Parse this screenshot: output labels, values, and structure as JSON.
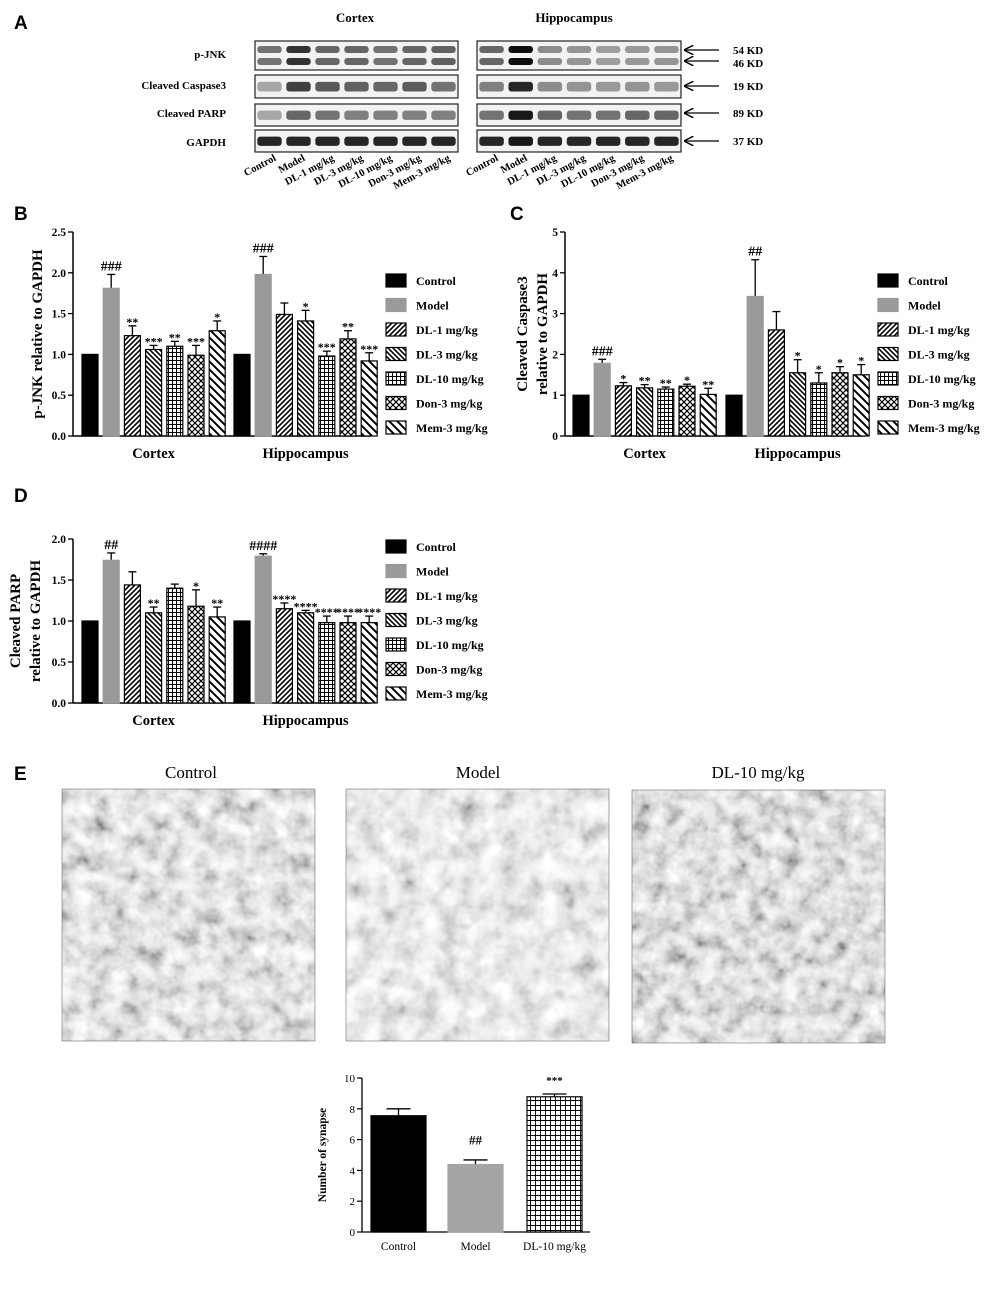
{
  "panel_letters": [
    "A",
    "B",
    "C",
    "D",
    "E"
  ],
  "blot": {
    "regions": [
      "Cortex",
      "Hippocampus"
    ],
    "rows": [
      "p-JNK",
      "Cleaved Caspase3",
      "Cleaved PARP",
      "GAPDH"
    ],
    "sizes": [
      "54 KD",
      "46 KD",
      "19 KD",
      "89 KD",
      "37 KD"
    ],
    "lanes": [
      "Control",
      "Model",
      "DL-1 mg/kg",
      "DL-3 mg/kg",
      "DL-10 mg/kg",
      "Don-3 mg/kg",
      "Mem-3 mg/kg"
    ]
  },
  "legend": [
    "Control",
    "Model",
    "DL-1 mg/kg",
    "DL-3 mg/kg",
    "DL-10 mg/kg",
    "Don-3 mg/kg",
    "Mem-3 mg/kg"
  ],
  "em_titles": [
    "Control",
    "Model",
    "DL-10 mg/kg"
  ],
  "colors": {
    "control": "#000000",
    "model": "#9a9a9a",
    "pattern": "#000000",
    "background": "#ffffff"
  },
  "chart_data": [
    {
      "panel": "B",
      "type": "bar",
      "categories": [
        "Cortex",
        "Hippocampus"
      ],
      "ylabel": "p-JNK relative to GAPDH",
      "ylim": [
        0,
        2.5
      ],
      "yticks": [
        "0.0",
        "0.5",
        "1.0",
        "1.5",
        "2.0",
        "2.5"
      ],
      "series": [
        {
          "name": "Control",
          "values": [
            1.0,
            1.0
          ],
          "errors": [
            0,
            0
          ],
          "marks": [
            "",
            ""
          ]
        },
        {
          "name": "Model",
          "values": [
            1.81,
            1.98
          ],
          "errors": [
            0.17,
            0.22
          ],
          "marks": [
            "###",
            "###"
          ]
        },
        {
          "name": "DL-1 mg/kg",
          "values": [
            1.23,
            1.49
          ],
          "errors": [
            0.12,
            0.14
          ],
          "marks": [
            "**",
            ""
          ]
        },
        {
          "name": "DL-3 mg/kg",
          "values": [
            1.06,
            1.41
          ],
          "errors": [
            0.05,
            0.13
          ],
          "marks": [
            "***",
            "*"
          ]
        },
        {
          "name": "DL-10 mg/kg",
          "values": [
            1.1,
            0.98
          ],
          "errors": [
            0.06,
            0.06
          ],
          "marks": [
            "**",
            "***"
          ]
        },
        {
          "name": "Don-3 mg/kg",
          "values": [
            0.99,
            1.19
          ],
          "errors": [
            0.12,
            0.1
          ],
          "marks": [
            "***",
            "**"
          ]
        },
        {
          "name": "Mem-3 mg/kg",
          "values": [
            1.29,
            0.92
          ],
          "errors": [
            0.12,
            0.1
          ],
          "marks": [
            "*",
            "***"
          ]
        }
      ]
    },
    {
      "panel": "C",
      "type": "bar",
      "categories": [
        "Cortex",
        "Hippocampus"
      ],
      "ylabel": [
        "Cleaved Caspase3",
        "relative to GAPDH"
      ],
      "ylim": [
        0,
        5
      ],
      "yticks": [
        "0",
        "1",
        "2",
        "3",
        "4",
        "5"
      ],
      "series": [
        {
          "name": "Control",
          "values": [
            1.0,
            1.0
          ],
          "errors": [
            0,
            0
          ],
          "marks": [
            "",
            ""
          ]
        },
        {
          "name": "Model",
          "values": [
            1.78,
            3.42
          ],
          "errors": [
            0.1,
            0.9
          ],
          "marks": [
            "###",
            "##"
          ]
        },
        {
          "name": "DL-1 mg/kg",
          "values": [
            1.23,
            2.6
          ],
          "errors": [
            0.08,
            0.45
          ],
          "marks": [
            "*",
            ""
          ]
        },
        {
          "name": "DL-3 mg/kg",
          "values": [
            1.18,
            1.55
          ],
          "errors": [
            0.08,
            0.32
          ],
          "marks": [
            "**",
            "*"
          ]
        },
        {
          "name": "DL-10 mg/kg",
          "values": [
            1.15,
            1.3
          ],
          "errors": [
            0.05,
            0.25
          ],
          "marks": [
            "**",
            "*"
          ]
        },
        {
          "name": "Don-3 mg/kg",
          "values": [
            1.22,
            1.55
          ],
          "errors": [
            0.05,
            0.15
          ],
          "marks": [
            "*",
            "*"
          ]
        },
        {
          "name": "Mem-3 mg/kg",
          "values": [
            1.02,
            1.5
          ],
          "errors": [
            0.15,
            0.25
          ],
          "marks": [
            "**",
            "*"
          ]
        }
      ]
    },
    {
      "panel": "D",
      "type": "bar",
      "categories": [
        "Cortex",
        "Hippocampus"
      ],
      "ylabel": [
        "Cleaved PARP",
        "relative to GAPDH"
      ],
      "ylim": [
        0,
        2.0
      ],
      "yticks": [
        "0.0",
        "0.5",
        "1.0",
        "1.5",
        "2.0"
      ],
      "series": [
        {
          "name": "Control",
          "values": [
            1.0,
            1.0
          ],
          "errors": [
            0,
            0
          ],
          "marks": [
            "",
            ""
          ]
        },
        {
          "name": "Model",
          "values": [
            1.74,
            1.79
          ],
          "errors": [
            0.09,
            0.03
          ],
          "marks": [
            "##",
            "####"
          ]
        },
        {
          "name": "DL-1 mg/kg",
          "values": [
            1.44,
            1.15
          ],
          "errors": [
            0.16,
            0.07
          ],
          "marks": [
            "",
            "****"
          ]
        },
        {
          "name": "DL-3 mg/kg",
          "values": [
            1.1,
            1.1
          ],
          "errors": [
            0.07,
            0.03
          ],
          "marks": [
            "**",
            "****"
          ]
        },
        {
          "name": "DL-10 mg/kg",
          "values": [
            1.4,
            0.98
          ],
          "errors": [
            0.05,
            0.08
          ],
          "marks": [
            "",
            "****"
          ]
        },
        {
          "name": "Don-3 mg/kg",
          "values": [
            1.18,
            0.98
          ],
          "errors": [
            0.2,
            0.08
          ],
          "marks": [
            "*",
            "****"
          ]
        },
        {
          "name": "Mem-3 mg/kg",
          "values": [
            1.05,
            0.98
          ],
          "errors": [
            0.12,
            0.08
          ],
          "marks": [
            "**",
            "****"
          ]
        }
      ]
    },
    {
      "panel": "E",
      "type": "bar",
      "categories": [
        "Control",
        "Model",
        "DL-10 mg/kg"
      ],
      "ylabel": "Number of synapse",
      "ylim": [
        0,
        10
      ],
      "yticks": [
        "0",
        "2",
        "4",
        "6",
        "8",
        "10"
      ],
      "values": [
        7.55,
        4.38,
        8.78
      ],
      "errors": [
        0.45,
        0.3,
        0.18
      ],
      "marks": [
        "",
        "##",
        "***"
      ]
    }
  ]
}
